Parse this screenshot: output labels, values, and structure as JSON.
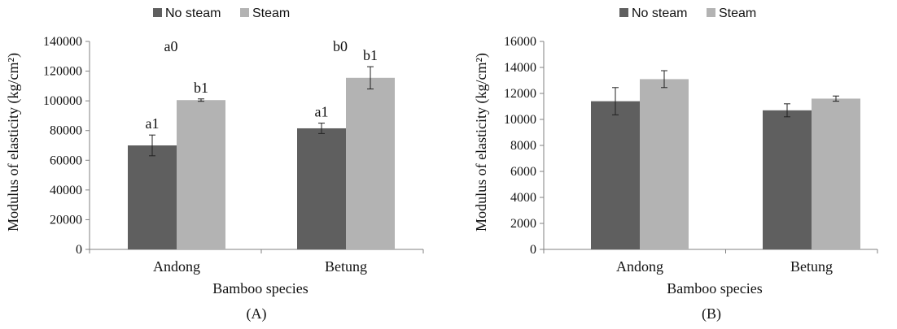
{
  "chart_data": [
    {
      "type": "bar",
      "panel_label": "(A)",
      "categories": [
        "Andong",
        "Betung"
      ],
      "series": [
        {
          "name": "No steam",
          "values": [
            70000,
            81500
          ],
          "errors": [
            7000,
            3500
          ],
          "labels": [
            "a1",
            "a1"
          ]
        },
        {
          "name": "Steam",
          "values": [
            100500,
            115500
          ],
          "errors": [
            800,
            7500
          ],
          "labels": [
            "b1",
            "b1"
          ]
        }
      ],
      "group_labels": [
        "a0",
        "b0"
      ],
      "xlabel": "Bamboo species",
      "ylabel": "Modulus of elasticity (kg/cm²)",
      "ylim": [
        0,
        140000
      ],
      "yticks": [
        0,
        20000,
        40000,
        60000,
        80000,
        100000,
        120000,
        140000
      ],
      "legend_position": "top",
      "grid": false,
      "colors": {
        "No steam": "#5f5f5f",
        "Steam": "#b3b3b3"
      }
    },
    {
      "type": "bar",
      "panel_label": "(B)",
      "categories": [
        "Andong",
        "Betung"
      ],
      "series": [
        {
          "name": "No steam",
          "values": [
            11400,
            10700
          ],
          "errors": [
            1050,
            500
          ],
          "labels": [
            "",
            ""
          ]
        },
        {
          "name": "Steam",
          "values": [
            13100,
            11600
          ],
          "errors": [
            650,
            200
          ],
          "labels": [
            "",
            ""
          ]
        }
      ],
      "group_labels": [
        "",
        ""
      ],
      "xlabel": "Bamboo species",
      "ylabel": "Modulus of elasticity (kg/cm²)",
      "ylim": [
        0,
        16000
      ],
      "yticks": [
        0,
        2000,
        4000,
        6000,
        8000,
        10000,
        12000,
        14000,
        16000
      ],
      "legend_position": "top",
      "grid": false,
      "colors": {
        "No steam": "#5f5f5f",
        "Steam": "#b3b3b3"
      }
    }
  ]
}
